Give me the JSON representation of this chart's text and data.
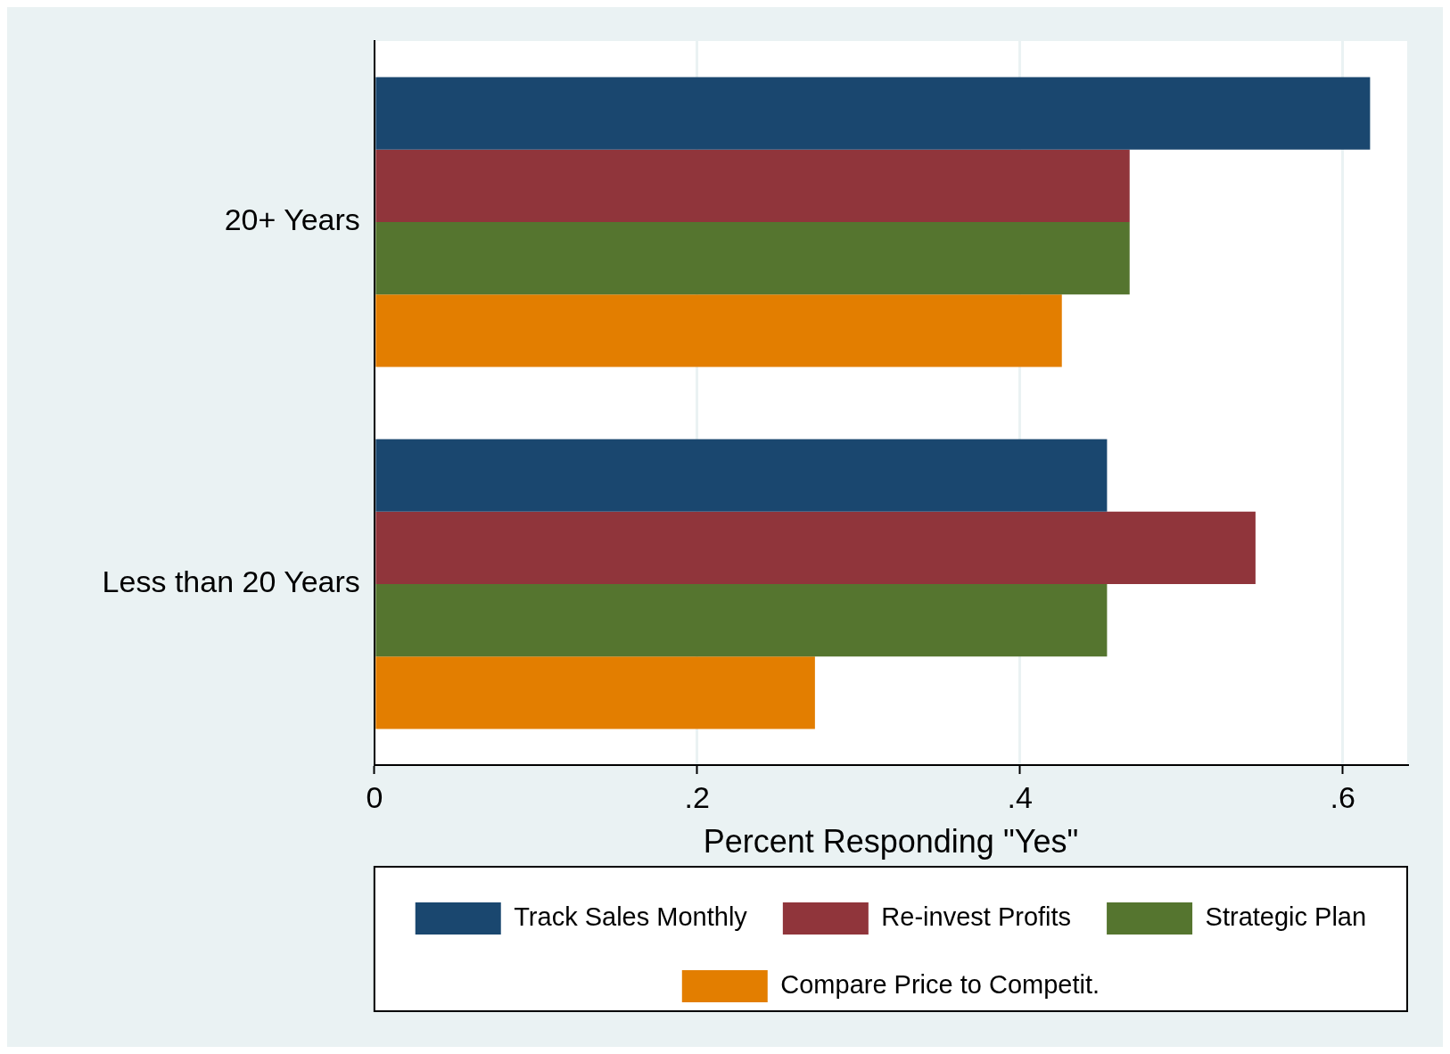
{
  "chart_data": {
    "type": "bar",
    "orientation": "horizontal",
    "xlabel": "Percent Responding \"Yes\"",
    "categories": [
      "20+ Years",
      "Less than 20 Years"
    ],
    "series": [
      {
        "name": "Track Sales Monthly",
        "color": "#1a476f",
        "values": [
          0.617,
          0.454
        ]
      },
      {
        "name": "Re-invest Profits",
        "color": "#90353b",
        "values": [
          0.468,
          0.546
        ]
      },
      {
        "name": "Strategic Plan",
        "color": "#55752f",
        "values": [
          0.468,
          0.454
        ]
      },
      {
        "name": "Compare Price to Competit.",
        "color": "#e37e00",
        "values": [
          0.426,
          0.273
        ]
      }
    ],
    "xlim": [
      0,
      0.64
    ],
    "xticks": [
      {
        "value": 0,
        "label": "0"
      },
      {
        "value": 0.2,
        "label": ".2"
      },
      {
        "value": 0.4,
        "label": ".4"
      },
      {
        "value": 0.6,
        "label": ".6"
      }
    ],
    "grid": "x",
    "legend": "bottom"
  }
}
